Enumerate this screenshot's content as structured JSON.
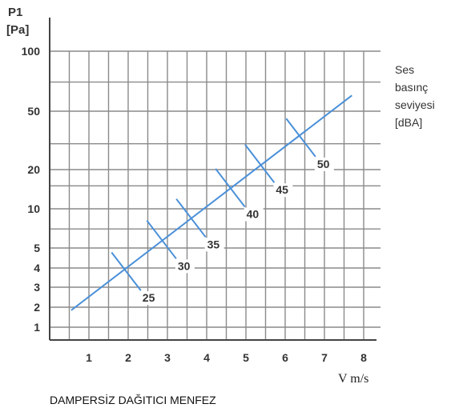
{
  "chart_data": {
    "type": "line",
    "title": "",
    "caption": "DAMPERSİZ DAĞITICI MENFEZ",
    "ylabel_line1": "P1",
    "ylabel_line2": "[Pa]",
    "xlabel": "V m/s",
    "legend_lines": [
      "Ses",
      "basınç",
      "seviyesi",
      "[dBA]"
    ],
    "y_scale": "log-like",
    "x_range": [
      0,
      9
    ],
    "x_ticks": [
      1,
      2,
      3,
      4,
      5,
      6,
      7,
      8
    ],
    "x_tick_labels": [
      "1",
      "2",
      "3",
      "4",
      "5",
      "6",
      "7",
      "8"
    ],
    "y_ticks": [
      1,
      2,
      3,
      4,
      5,
      10,
      20,
      50,
      100
    ],
    "y_tick_labels": [
      "1",
      "2",
      "3",
      "4",
      "5",
      "10",
      "20",
      "50",
      "100"
    ],
    "grid": true,
    "series": [
      {
        "x": [
          0.55,
          7.7
        ],
        "y": [
          1.8,
          60
        ],
        "color": "#4a90d9"
      }
    ],
    "markers": [
      {
        "label": "25",
        "x": 1.95,
        "y": 3.8
      },
      {
        "label": "30",
        "x": 2.85,
        "y": 5.8
      },
      {
        "label": "35",
        "x": 3.6,
        "y": 8.5
      },
      {
        "label": "40",
        "x": 4.6,
        "y": 14.5
      },
      {
        "label": "45",
        "x": 5.35,
        "y": 22
      },
      {
        "label": "50",
        "x": 6.4,
        "y": 33
      }
    ],
    "colors": {
      "line": "#4a90d9",
      "grid": "#8a8a8a",
      "axis": "#444444",
      "text": "#333333"
    }
  }
}
